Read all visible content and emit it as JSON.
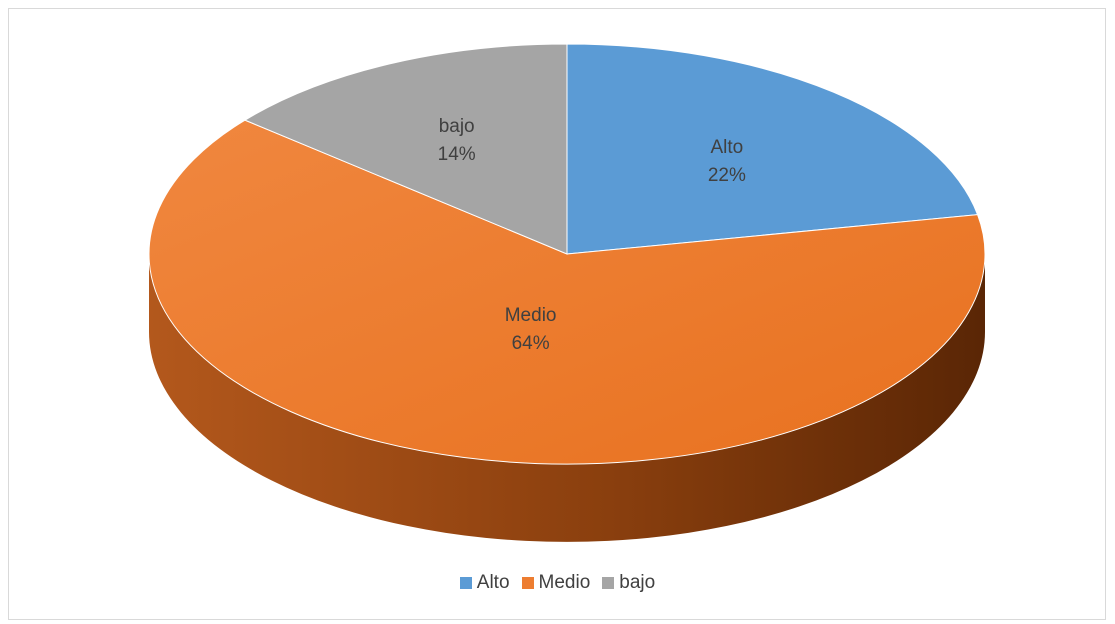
{
  "chart_data": {
    "type": "pie",
    "title": "",
    "legend_position": "bottom",
    "slices": [
      {
        "label": "Alto",
        "value": 22,
        "value_label": "22%",
        "color": "#5b9bd5"
      },
      {
        "label": "Medio",
        "value": 64,
        "value_label": "64%",
        "color": "#ed7d31"
      },
      {
        "label": "bajo",
        "value": 14,
        "value_label": "14%",
        "color": "#a5a5a5"
      }
    ]
  }
}
